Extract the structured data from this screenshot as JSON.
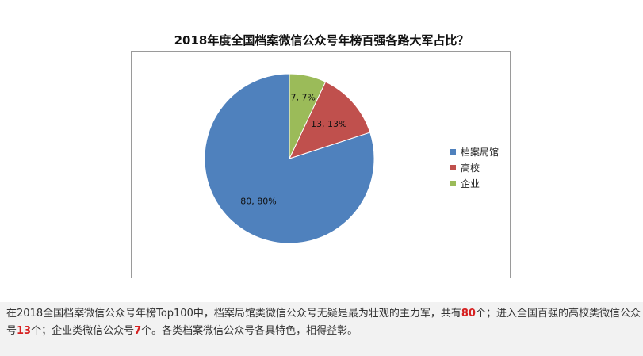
{
  "chart_data": {
    "type": "pie",
    "title": "2018年度全国档案微信公众号年榜百强各路大军占比？",
    "categories": [
      "档案局馆",
      "高校",
      "企业"
    ],
    "values": [
      80,
      13,
      7
    ],
    "data_labels": [
      "80, 80%",
      "13, 13%",
      "7, 7%"
    ],
    "colors": [
      "#4f81bd",
      "#c0504d",
      "#9bbb59"
    ],
    "legend_position": "right",
    "start_angle": "12 o'clock",
    "direction": "counterclockwise"
  },
  "note": {
    "s1": "在2018全国档案微信公众号年榜Top100中，档案局馆类微信公众号无疑是最为壮观的主力军，共有",
    "v1": "80",
    "s2": "个；进入全国百强的高校类微信公众号",
    "v2": "13",
    "s3": "个；企业类微信公众号",
    "v3": "7",
    "s4": "个。各类档案微信公众号各具特色，相得益彰。"
  }
}
